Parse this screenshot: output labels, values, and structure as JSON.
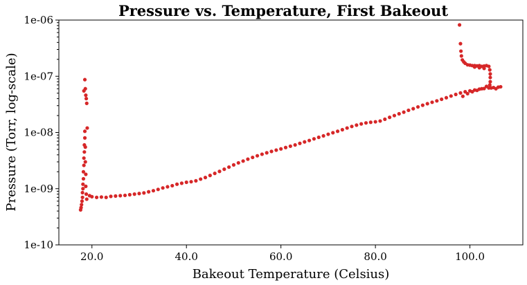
{
  "chart_data": {
    "type": "scatter",
    "title": "Pressure vs. Temperature, First Bakeout",
    "xlabel": "Bakeout Temperature (Celsius)",
    "ylabel": "Pressure (Torr, log-scale)",
    "xlim": [
      13.0,
      111.2
    ],
    "ylim": [
      1e-10,
      1e-06
    ],
    "yscale": "log",
    "grid": false,
    "marker_color": "#d62728",
    "x_ticks": [
      20,
      40,
      60,
      80,
      100
    ],
    "x_tick_labels": [
      "20.0",
      "40.0",
      "60.0",
      "80.0",
      "100.0"
    ],
    "y_ticks": [
      1e-10,
      1e-09,
      1e-08,
      1e-07,
      1e-06
    ],
    "y_tick_labels": [
      "1e-10",
      "1e-09",
      "1e-08",
      "1e-07",
      "1e-06"
    ],
    "series": [
      {
        "points": [
          [
            17.6,
            4.2e-10
          ],
          [
            17.7,
            4.6e-10
          ],
          [
            17.8,
            5.2e-10
          ],
          [
            17.9,
            6e-10
          ],
          [
            18.0,
            7e-10
          ],
          [
            18.0,
            8.5e-10
          ],
          [
            18.1,
            1e-09
          ],
          [
            18.1,
            1.2e-09
          ],
          [
            18.2,
            1.5e-09
          ],
          [
            18.2,
            2e-09
          ],
          [
            18.3,
            2.6e-09
          ],
          [
            18.3,
            3.5e-09
          ],
          [
            18.4,
            4.5e-09
          ],
          [
            18.4,
            6e-09
          ],
          [
            18.5,
            8e-09
          ],
          [
            18.5,
            1.05e-08
          ],
          [
            18.6,
            5.5e-09
          ],
          [
            18.6,
            3e-09
          ],
          [
            18.7,
            1.8e-09
          ],
          [
            18.7,
            1.1e-09
          ],
          [
            18.8,
            8e-10
          ],
          [
            18.9,
            6.5e-10
          ],
          [
            19.0,
            1.2e-08
          ],
          [
            18.3,
            5.5e-08
          ],
          [
            18.5,
            8.7e-08
          ],
          [
            18.6,
            6e-08
          ],
          [
            18.7,
            4.6e-08
          ],
          [
            18.8,
            4e-08
          ],
          [
            18.9,
            3.3e-08
          ],
          [
            19.5,
            7.5e-10
          ],
          [
            20.0,
            7.2e-10
          ],
          [
            21.0,
            7e-10
          ],
          [
            22.0,
            7.1e-10
          ],
          [
            23.0,
            7e-10
          ],
          [
            24.0,
            7.3e-10
          ],
          [
            25.0,
            7.4e-10
          ],
          [
            26.0,
            7.5e-10
          ],
          [
            27.0,
            7.6e-10
          ],
          [
            28.0,
            7.8e-10
          ],
          [
            29.0,
            8e-10
          ],
          [
            30.0,
            8.2e-10
          ],
          [
            31.0,
            8.4e-10
          ],
          [
            32.0,
            8.8e-10
          ],
          [
            33.0,
            9.2e-10
          ],
          [
            34.0,
            9.7e-10
          ],
          [
            35.0,
            1.03e-09
          ],
          [
            36.0,
            1.08e-09
          ],
          [
            37.0,
            1.13e-09
          ],
          [
            38.0,
            1.2e-09
          ],
          [
            39.0,
            1.25e-09
          ],
          [
            40.0,
            1.3e-09
          ],
          [
            41.0,
            1.33e-09
          ],
          [
            42.0,
            1.38e-09
          ],
          [
            43.0,
            1.48e-09
          ],
          [
            44.0,
            1.58e-09
          ],
          [
            45.0,
            1.72e-09
          ],
          [
            46.0,
            1.87e-09
          ],
          [
            47.0,
            2.03e-09
          ],
          [
            48.0,
            2.22e-09
          ],
          [
            49.0,
            2.42e-09
          ],
          [
            50.0,
            2.65e-09
          ],
          [
            51.0,
            2.88e-09
          ],
          [
            52.0,
            3.1e-09
          ],
          [
            53.0,
            3.35e-09
          ],
          [
            54.0,
            3.6e-09
          ],
          [
            55.0,
            3.85e-09
          ],
          [
            56.0,
            4.1e-09
          ],
          [
            57.0,
            4.35e-09
          ],
          [
            58.0,
            4.6e-09
          ],
          [
            59.0,
            4.85e-09
          ],
          [
            60.0,
            5.1e-09
          ],
          [
            61.0,
            5.4e-09
          ],
          [
            62.0,
            5.7e-09
          ],
          [
            63.0,
            6e-09
          ],
          [
            64.0,
            6.4e-09
          ],
          [
            65.0,
            6.8e-09
          ],
          [
            66.0,
            7.2e-09
          ],
          [
            67.0,
            7.7e-09
          ],
          [
            68.0,
            8.2e-09
          ],
          [
            69.0,
            8.7e-09
          ],
          [
            70.0,
            9.3e-09
          ],
          [
            71.0,
            9.9e-09
          ],
          [
            72.0,
            1.05e-08
          ],
          [
            73.0,
            1.12e-08
          ],
          [
            74.0,
            1.2e-08
          ],
          [
            75.0,
            1.28e-08
          ],
          [
            76.0,
            1.35e-08
          ],
          [
            77.0,
            1.42e-08
          ],
          [
            78.0,
            1.48e-08
          ],
          [
            79.0,
            1.52e-08
          ],
          [
            80.0,
            1.55e-08
          ],
          [
            81.0,
            1.6e-08
          ],
          [
            82.0,
            1.72e-08
          ],
          [
            83.0,
            1.86e-08
          ],
          [
            84.0,
            2e-08
          ],
          [
            85.0,
            2.15e-08
          ],
          [
            86.0,
            2.3e-08
          ],
          [
            87.0,
            2.48e-08
          ],
          [
            88.0,
            2.65e-08
          ],
          [
            89.0,
            2.85e-08
          ],
          [
            90.0,
            3.05e-08
          ],
          [
            91.0,
            3.25e-08
          ],
          [
            92.0,
            3.45e-08
          ],
          [
            93.0,
            3.65e-08
          ],
          [
            94.0,
            3.9e-08
          ],
          [
            95.0,
            4.15e-08
          ],
          [
            96.0,
            4.45e-08
          ],
          [
            97.0,
            4.75e-08
          ],
          [
            98.0,
            5.05e-08
          ],
          [
            99.0,
            5.3e-08
          ],
          [
            100.0,
            5.5e-08
          ],
          [
            101.0,
            5.7e-08
          ],
          [
            102.0,
            5.9e-08
          ],
          [
            103.0,
            6.05e-08
          ],
          [
            104.0,
            6.2e-08
          ],
          [
            105.0,
            6.3e-08
          ],
          [
            106.0,
            6.4e-08
          ],
          [
            106.5,
            6.5e-08
          ],
          [
            98.5,
            4.4e-08
          ],
          [
            99.5,
            4.9e-08
          ],
          [
            100.5,
            5.3e-08
          ],
          [
            101.5,
            5.6e-08
          ],
          [
            102.5,
            6e-08
          ],
          [
            103.5,
            6.6e-08
          ],
          [
            104.5,
            6.2e-08
          ],
          [
            105.5,
            6e-08
          ],
          [
            97.8,
            8.2e-07
          ],
          [
            98.0,
            3.8e-07
          ],
          [
            98.1,
            2.8e-07
          ],
          [
            98.2,
            2.3e-07
          ],
          [
            98.4,
            1.95e-07
          ],
          [
            98.7,
            1.8e-07
          ],
          [
            99.0,
            1.7e-07
          ],
          [
            99.5,
            1.6e-07
          ],
          [
            100.0,
            1.58e-07
          ],
          [
            100.5,
            1.55e-07
          ],
          [
            101.0,
            1.55e-07
          ],
          [
            101.5,
            1.53e-07
          ],
          [
            102.0,
            1.55e-07
          ],
          [
            102.5,
            1.5e-07
          ],
          [
            103.0,
            1.52e-07
          ],
          [
            103.5,
            1.55e-07
          ],
          [
            104.0,
            1.5e-07
          ],
          [
            104.2,
            1.3e-07
          ],
          [
            104.3,
            1.1e-07
          ],
          [
            104.3,
            9.5e-08
          ],
          [
            104.3,
            8e-08
          ],
          [
            104.2,
            7e-08
          ],
          [
            103.0,
            1.38e-07
          ],
          [
            102.0,
            1.42e-07
          ],
          [
            101.0,
            1.46e-07
          ]
        ]
      }
    ]
  }
}
